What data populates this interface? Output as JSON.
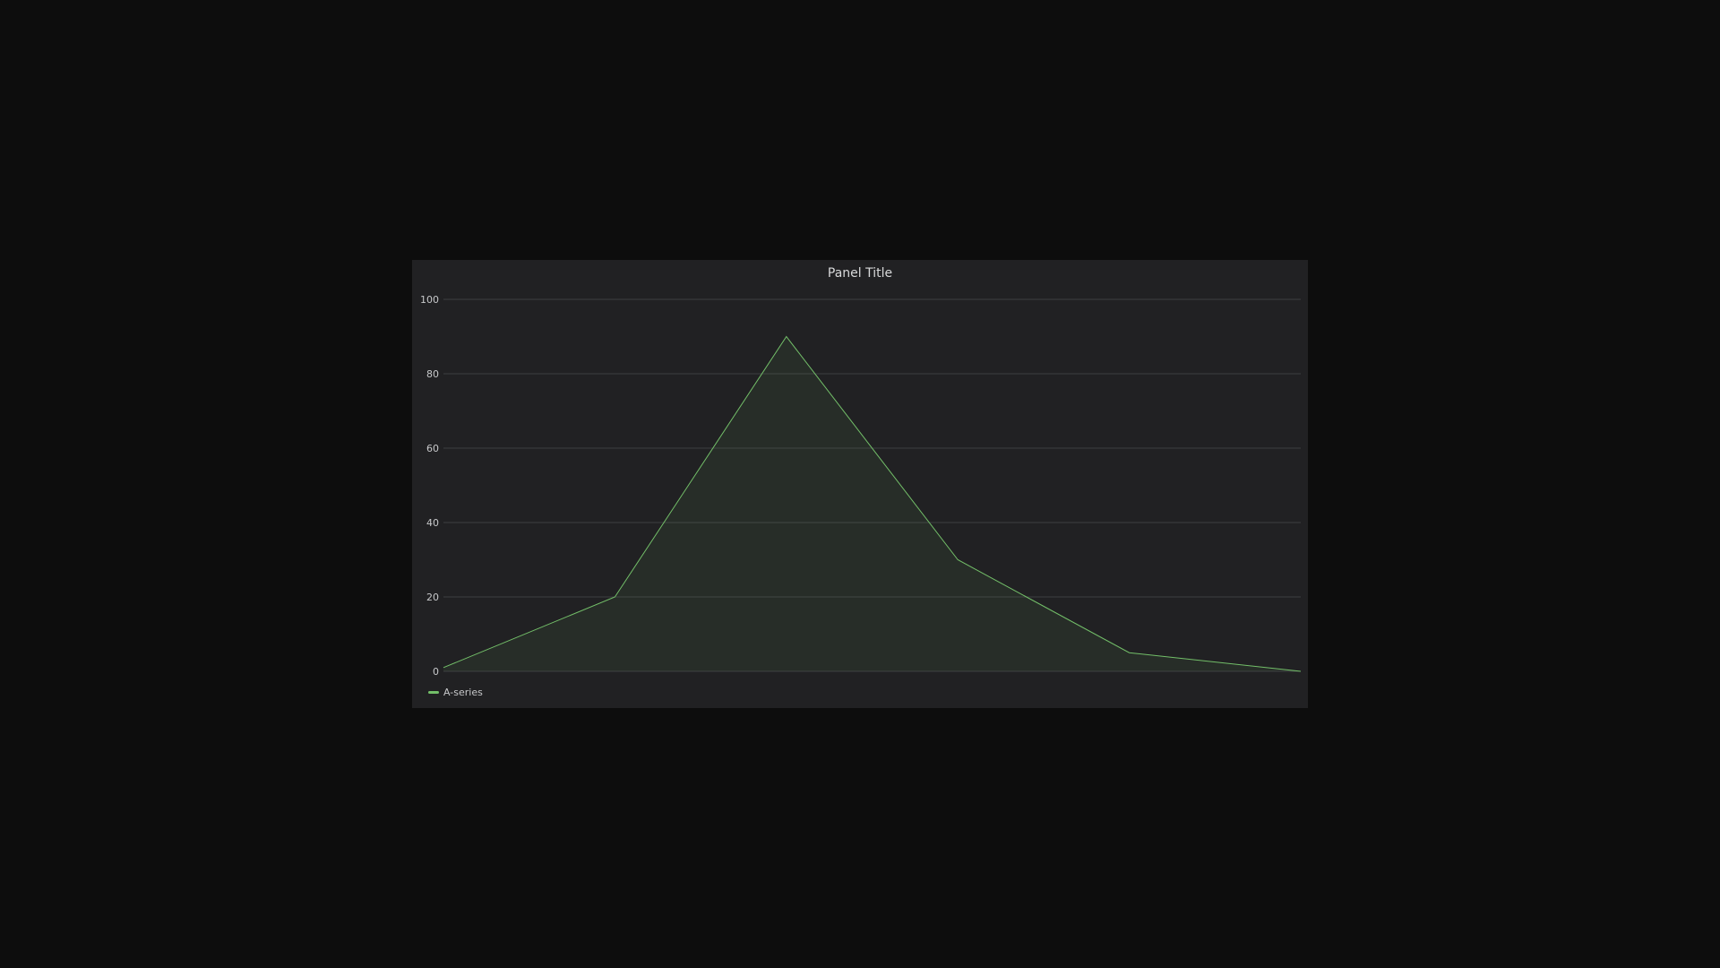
{
  "panel": {
    "title": "Panel Title"
  },
  "chart_data": {
    "type": "area",
    "x": [
      0,
      1,
      2,
      3,
      4,
      5
    ],
    "series": [
      {
        "name": "A-series",
        "values": [
          1,
          20,
          90,
          30,
          5,
          0
        ],
        "color": "#73bf69"
      }
    ],
    "title": "Panel Title",
    "xlabel": "",
    "ylabel": "",
    "ylim": [
      0,
      100
    ],
    "yticks": [
      "0",
      "20",
      "40",
      "60",
      "80",
      "100"
    ],
    "grid": true,
    "legend_position": "bottom-left"
  },
  "colors": {
    "background": "#0d0d0d",
    "panel": "#212123",
    "grid": "#3d3e42",
    "text": "#c7c8ca",
    "series": "#73bf69"
  }
}
